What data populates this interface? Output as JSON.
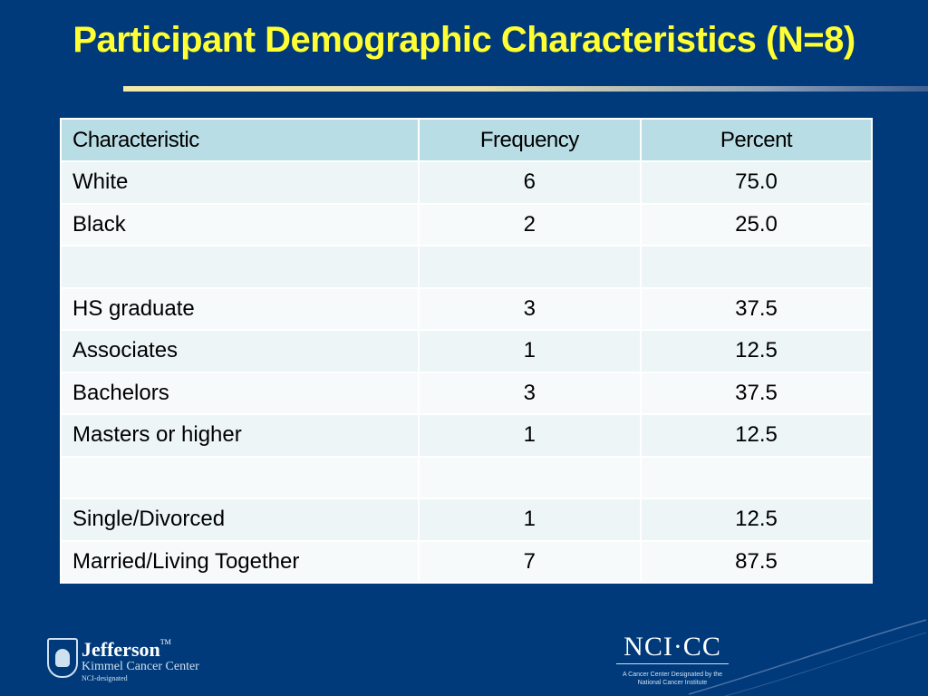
{
  "slide": {
    "title": "Participant Demographic Characteristics (N=8)"
  },
  "table": {
    "headers": [
      "Characteristic",
      "Frequency",
      "Percent"
    ],
    "rows": [
      [
        "White",
        "6",
        "75.0"
      ],
      [
        "Black",
        "2",
        "25.0"
      ],
      [
        "",
        "",
        ""
      ],
      [
        "HS graduate",
        "3",
        "37.5"
      ],
      [
        "Associates",
        "1",
        "12.5"
      ],
      [
        "Bachelors",
        "3",
        "37.5"
      ],
      [
        "Masters or higher",
        "1",
        "12.5"
      ],
      [
        "",
        "",
        ""
      ],
      [
        "Single/Divorced",
        "1",
        "12.5"
      ],
      [
        "Married/Living Together",
        "7",
        "87.5"
      ]
    ]
  },
  "logos": {
    "jefferson": {
      "name": "Jefferson",
      "tm": "TM",
      "subtitle": "Kimmel Cancer Center",
      "tagline": "NCI-designated"
    },
    "nci": {
      "mark": "NCI·CC",
      "caption_line1": "A Cancer Center Designated by the",
      "caption_line2": "National Cancer Institute"
    }
  },
  "colors": {
    "background": "#003a7a",
    "title": "#ffff33",
    "header_fill": "#b8dde4",
    "row_fill": "#edf5f7"
  }
}
